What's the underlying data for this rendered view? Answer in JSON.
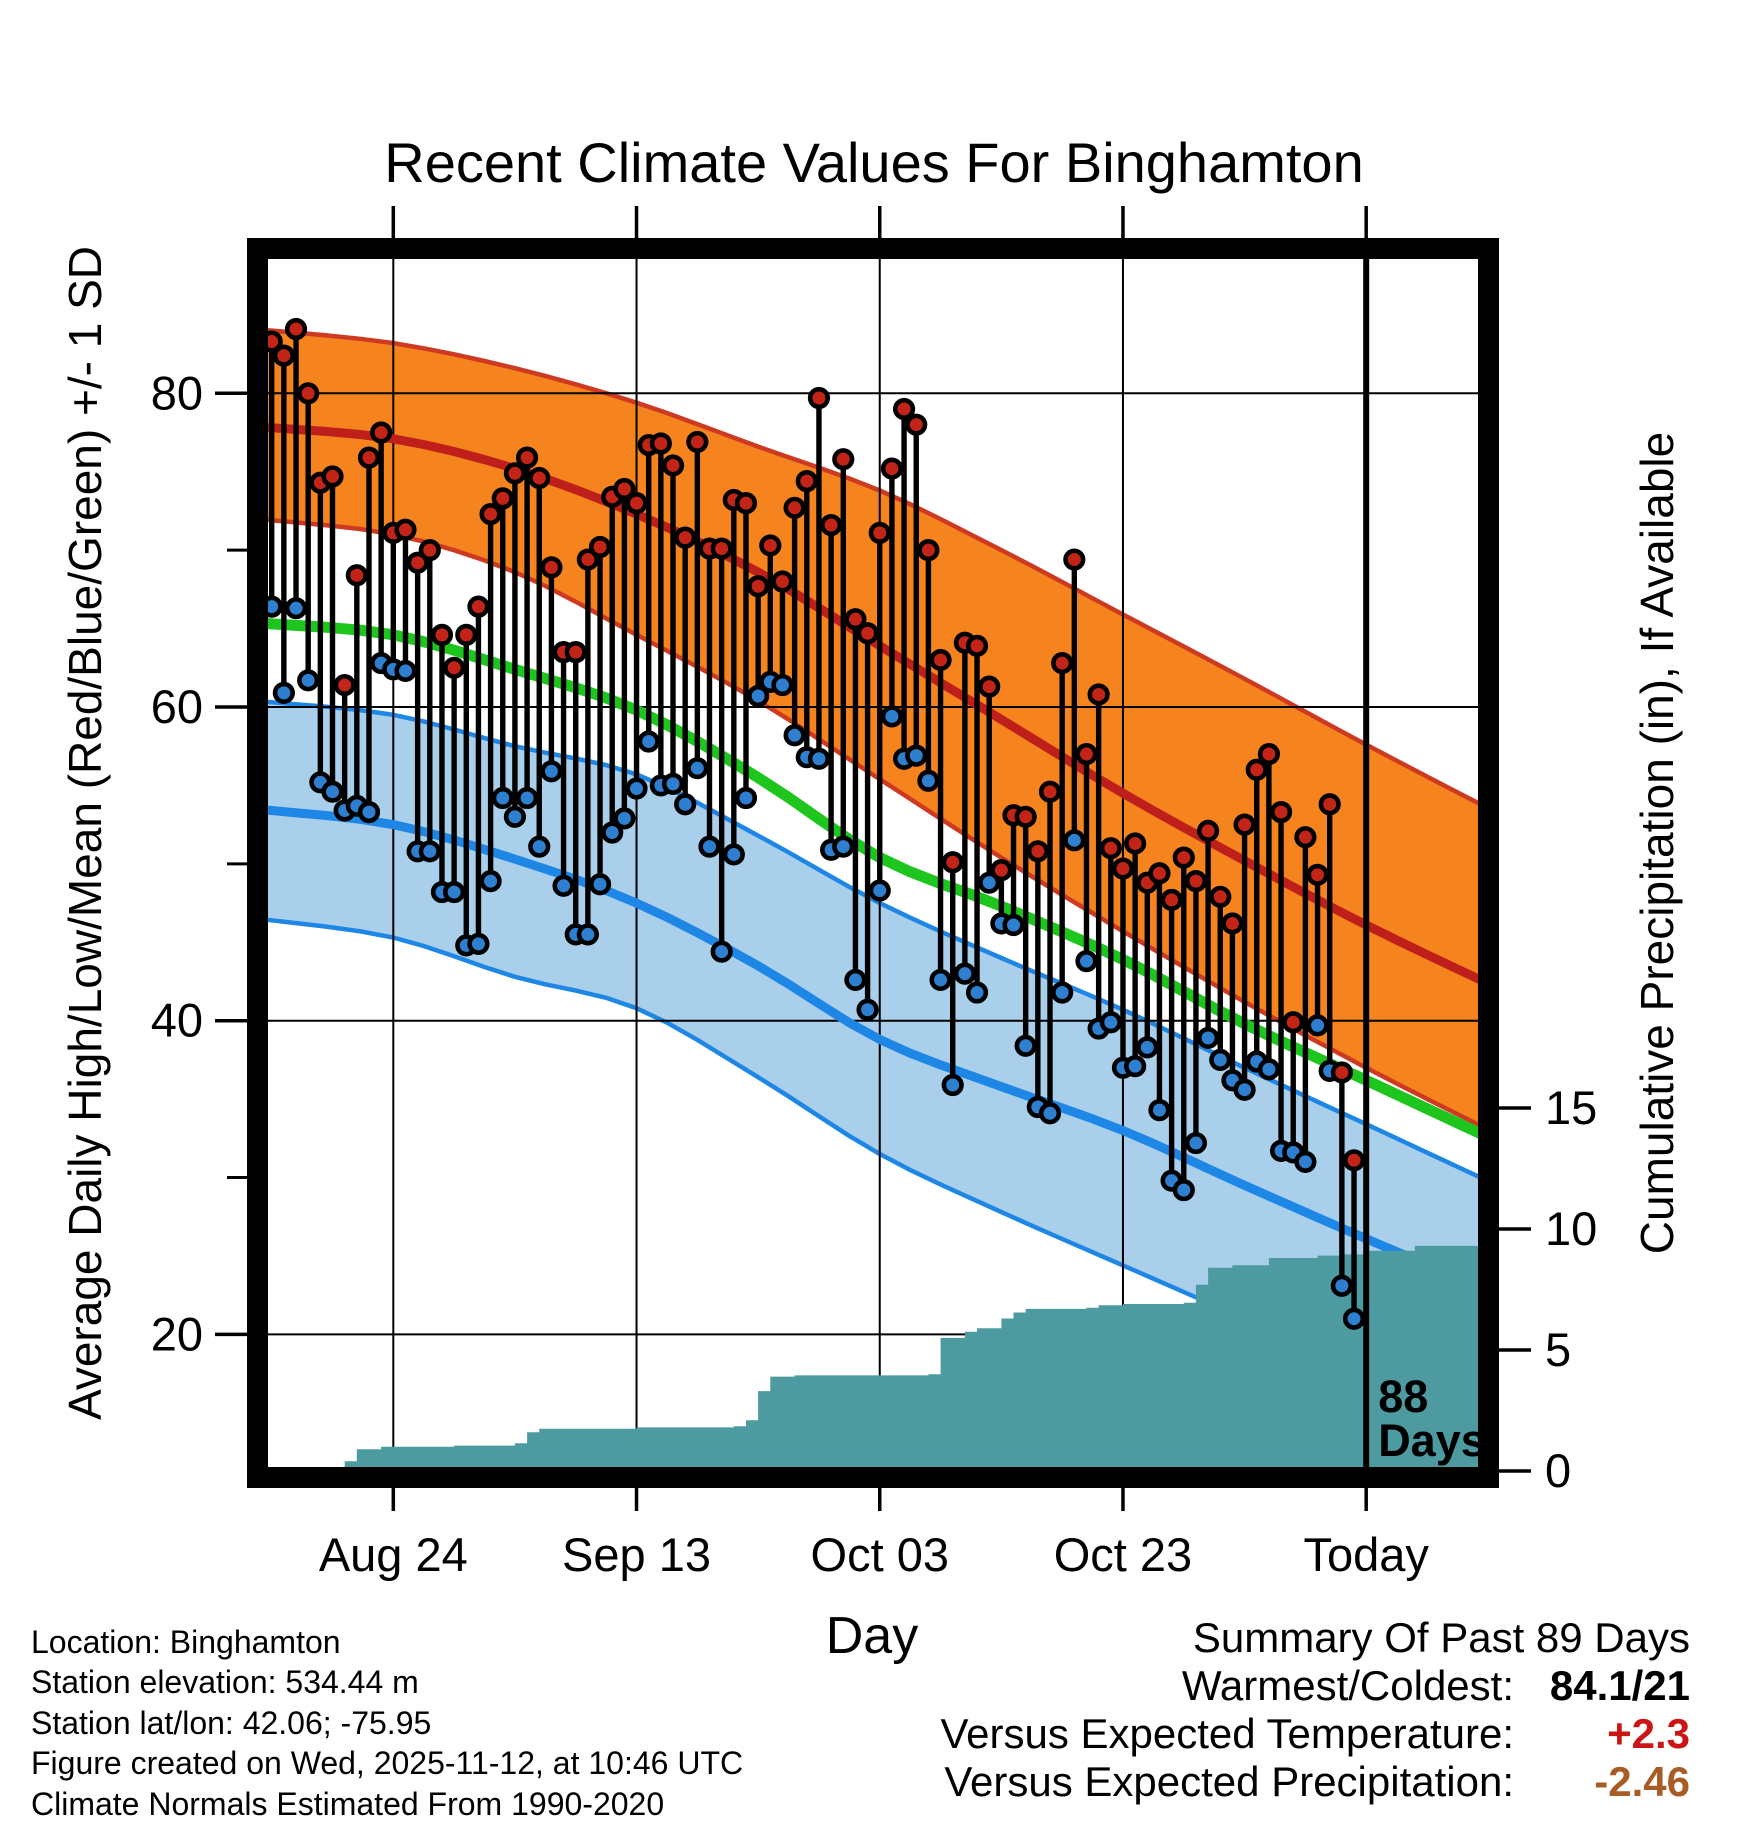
{
  "title": "Recent Climate Values For Binghamton",
  "axes": {
    "x": {
      "label": "Day",
      "tick_labels": [
        "Aug 24",
        "Sep 13",
        "Oct 03",
        "Oct 23",
        "Today"
      ],
      "tick_days": [
        10,
        30,
        50,
        70,
        90
      ]
    },
    "y_left": {
      "label": "Average Daily High/Low/Mean (Red/Blue/Green) +/- 1 SD",
      "ticks": [
        80,
        60,
        40,
        20
      ],
      "minor_ticks": [
        70,
        50,
        30
      ]
    },
    "y_right": {
      "label": "Cumulative Precipitation (in), If Available",
      "ticks": [
        15,
        10,
        5,
        0
      ]
    }
  },
  "annotation": {
    "line_day": 90,
    "label_line1": "88",
    "label_line2": "Days"
  },
  "footer_left": [
    "Location: Binghamton",
    "Station elevation: 534.44 m",
    "Station lat/lon: 42.06; -75.95",
    "Figure created on Wed, 2025-11-12, at 10:46 UTC",
    "Climate Normals Estimated From 1990-2020"
  ],
  "summary": {
    "title": "Summary Of Past 89 Days",
    "rows": [
      {
        "label": "Warmest/Coldest:",
        "value": "84.1/21",
        "value_color": "#000000"
      },
      {
        "label": "Versus Expected Temperature:",
        "value": "+2.3",
        "value_color": "#cc1414"
      },
      {
        "label": "Versus Expected Precipitation:",
        "value": "-2.46",
        "value_color": "#a85b24"
      }
    ]
  },
  "colors": {
    "high_band_fill": "#F5831E",
    "high_band_edge": "#CE3A21",
    "high_mean_line": "#BE1F1A",
    "high_dot": "#C22418",
    "mean_line": "#1DC51D",
    "low_band_fill": "#A9CFEA",
    "low_band_edge": "#1E86E5",
    "low_mean_line": "#1E86E5",
    "low_dot": "#2E7FD0",
    "precip_fill": "#4D9BA0",
    "stem": "#000000",
    "grid": "#000000",
    "frame": "#000000",
    "text": "#000000"
  },
  "chart_data": {
    "type": "line",
    "subtype": "climate-stems-with-normal-bands-and-precip-area",
    "title": "Recent Climate Values For Binghamton",
    "xlabel": "Day",
    "ylabel_left": "Average Daily High/Low/Mean (Red/Blue/Green) +/- 1 SD",
    "ylabel_right": "Cumulative Precipitation (in), If Available",
    "ylim_temp": [
      11.5,
      88.6
    ],
    "ylim_precip": [
      0,
      18
    ],
    "grid": true,
    "dates": [
      "Aug 14",
      "Aug 15",
      "Aug 16",
      "Aug 17",
      "Aug 18",
      "Aug 19",
      "Aug 20",
      "Aug 21",
      "Aug 22",
      "Aug 23",
      "Aug 24",
      "Aug 25",
      "Aug 26",
      "Aug 27",
      "Aug 28",
      "Aug 29",
      "Aug 30",
      "Aug 31",
      "Sep 01",
      "Sep 02",
      "Sep 03",
      "Sep 04",
      "Sep 05",
      "Sep 06",
      "Sep 07",
      "Sep 08",
      "Sep 09",
      "Sep 10",
      "Sep 11",
      "Sep 12",
      "Sep 13",
      "Sep 14",
      "Sep 15",
      "Sep 16",
      "Sep 17",
      "Sep 18",
      "Sep 19",
      "Sep 20",
      "Sep 21",
      "Sep 22",
      "Sep 23",
      "Sep 24",
      "Sep 25",
      "Sep 26",
      "Sep 27",
      "Sep 28",
      "Sep 29",
      "Sep 30",
      "Oct 01",
      "Oct 02",
      "Oct 03",
      "Oct 04",
      "Oct 05",
      "Oct 06",
      "Oct 07",
      "Oct 08",
      "Oct 09",
      "Oct 10",
      "Oct 11",
      "Oct 12",
      "Oct 13",
      "Oct 14",
      "Oct 15",
      "Oct 16",
      "Oct 17",
      "Oct 18",
      "Oct 19",
      "Oct 20",
      "Oct 21",
      "Oct 22",
      "Oct 23",
      "Oct 24",
      "Oct 25",
      "Oct 26",
      "Oct 27",
      "Oct 28",
      "Oct 29",
      "Oct 30",
      "Oct 31",
      "Nov 01",
      "Nov 02",
      "Nov 03",
      "Nov 04",
      "Nov 05",
      "Nov 06",
      "Nov 07",
      "Nov 08",
      "Nov 09",
      "Nov 10",
      "Nov 11"
    ],
    "daily_high": [
      83.3,
      82.4,
      84.1,
      80.0,
      74.3,
      74.7,
      61.4,
      68.4,
      75.9,
      77.5,
      71.1,
      71.3,
      69.2,
      70.0,
      64.6,
      62.5,
      64.6,
      66.4,
      72.3,
      73.3,
      74.9,
      75.9,
      74.6,
      68.9,
      63.5,
      63.5,
      69.4,
      70.2,
      73.4,
      73.9,
      73.0,
      76.7,
      76.8,
      75.4,
      70.8,
      76.9,
      70.1,
      70.1,
      73.2,
      73.0,
      67.7,
      70.3,
      68.0,
      72.7,
      74.4,
      79.7,
      71.6,
      75.8,
      65.6,
      64.7,
      71.1,
      75.2,
      79.0,
      78.0,
      70.0,
      63.0,
      50.1,
      64.1,
      63.9,
      61.3,
      49.6,
      53.1,
      53.0,
      50.8,
      54.6,
      62.8,
      69.4,
      57.0,
      60.8,
      51.0,
      49.7,
      51.3,
      48.8,
      49.4,
      47.7,
      50.4,
      48.9,
      52.1,
      47.9,
      46.2,
      52.5,
      56.0,
      57.0,
      53.3,
      39.9,
      51.7,
      49.3,
      53.8,
      36.7,
      31.1
    ],
    "daily_low": [
      66.4,
      60.9,
      66.3,
      61.7,
      55.2,
      54.6,
      53.4,
      53.7,
      53.3,
      62.8,
      62.4,
      62.3,
      50.8,
      50.8,
      48.2,
      48.2,
      44.8,
      44.9,
      48.9,
      54.2,
      53.0,
      54.2,
      51.1,
      55.9,
      48.6,
      45.5,
      45.5,
      48.7,
      52.0,
      52.9,
      54.8,
      57.8,
      55.0,
      55.1,
      53.8,
      56.1,
      51.1,
      44.4,
      50.6,
      54.2,
      60.7,
      61.6,
      61.4,
      58.2,
      56.8,
      56.7,
      50.9,
      51.1,
      42.6,
      40.7,
      48.3,
      59.4,
      56.7,
      56.9,
      55.3,
      42.6,
      35.9,
      43.0,
      41.8,
      48.8,
      46.2,
      46.1,
      38.4,
      34.5,
      34.1,
      41.8,
      51.5,
      43.8,
      39.5,
      39.9,
      37.0,
      37.1,
      38.3,
      34.3,
      29.8,
      29.2,
      32.2,
      38.9,
      37.5,
      36.2,
      35.6,
      37.4,
      36.9,
      31.7,
      31.6,
      31.0,
      39.7,
      36.8,
      23.1,
      21.0
    ],
    "normals": {
      "day": [
        0,
        10,
        20,
        30,
        40,
        50,
        60,
        70,
        80,
        90,
        99.4
      ],
      "high_plus_sd": [
        84.0,
        83.2,
        81.6,
        79.4,
        76.6,
        73.8,
        70.0,
        65.9,
        61.8,
        57.6,
        53.8
      ],
      "high_mean": [
        77.8,
        77.1,
        75.2,
        72.3,
        68.6,
        63.9,
        59.2,
        54.5,
        50.2,
        46.1,
        42.6
      ],
      "high_minus_sd": [
        71.9,
        71.0,
        68.6,
        64.6,
        60.4,
        55.4,
        50.4,
        45.7,
        41.2,
        37.0,
        33.3
      ],
      "mean": [
        65.3,
        64.6,
        62.4,
        59.8,
        55.5,
        50.4,
        47.3,
        43.9,
        39.8,
        36.2,
        32.8
      ],
      "low_plus_sd": [
        60.3,
        59.5,
        57.5,
        55.7,
        51.8,
        47.5,
        44.0,
        40.7,
        37.0,
        33.4,
        30.0
      ],
      "low_mean": [
        53.4,
        52.5,
        50.3,
        47.5,
        43.5,
        38.8,
        35.8,
        33.0,
        29.5,
        26.1,
        23.0
      ],
      "low_minus_sd": [
        46.4,
        45.3,
        42.8,
        40.8,
        36.4,
        31.5,
        27.8,
        24.4,
        21.0,
        17.5,
        14.2
      ]
    },
    "precip_cumulative_steps": [
      [
        6,
        0.4
      ],
      [
        7,
        0.9
      ],
      [
        9,
        1.0
      ],
      [
        15,
        1.05
      ],
      [
        20,
        1.15
      ],
      [
        21,
        1.6
      ],
      [
        22,
        1.75
      ],
      [
        30,
        1.8
      ],
      [
        38,
        1.85
      ],
      [
        39,
        2.1
      ],
      [
        40,
        3.3
      ],
      [
        41,
        3.9
      ],
      [
        43,
        3.95
      ],
      [
        54,
        4.0
      ],
      [
        55,
        5.5
      ],
      [
        57,
        5.75
      ],
      [
        58,
        5.9
      ],
      [
        60,
        6.3
      ],
      [
        61,
        6.55
      ],
      [
        62,
        6.7
      ],
      [
        67,
        6.75
      ],
      [
        68,
        6.85
      ],
      [
        70,
        6.9
      ],
      [
        75,
        6.95
      ],
      [
        76,
        7.7
      ],
      [
        77,
        8.4
      ],
      [
        79,
        8.5
      ],
      [
        82,
        8.8
      ],
      [
        86,
        8.9
      ],
      [
        88,
        8.95
      ],
      [
        90,
        9.1
      ],
      [
        94,
        9.3
      ],
      [
        99.4,
        9.4
      ]
    ]
  }
}
